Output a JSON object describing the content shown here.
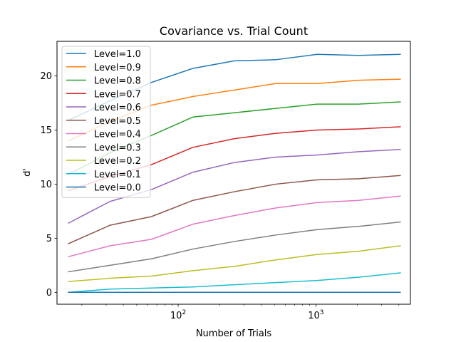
{
  "chart_data": {
    "type": "line",
    "title": "Covariance vs. Trial Count",
    "xlabel": "Number of Trials",
    "ylabel": "d'",
    "xscale": "log",
    "xlim": [
      13.2,
      4850
    ],
    "ylim": [
      -1.1,
      23.2
    ],
    "grid": false,
    "legend_position": "upper-left",
    "x": [
      16,
      32,
      64,
      128,
      256,
      512,
      1024,
      2048,
      4096
    ],
    "x_ticks": [
      {
        "value": 100,
        "base": "10",
        "exp": "2"
      },
      {
        "value": 1000,
        "base": "10",
        "exp": "3"
      }
    ],
    "y_ticks": [
      {
        "value": 0,
        "label": "0"
      },
      {
        "value": 5,
        "label": "5"
      },
      {
        "value": 10,
        "label": "10"
      },
      {
        "value": 15,
        "label": "15"
      },
      {
        "value": 20,
        "label": "20"
      }
    ],
    "series": [
      {
        "name": "Level=1.0",
        "color": "#1f77b4",
        "values": [
          15.9,
          17.7,
          19.4,
          20.7,
          21.4,
          21.5,
          22.0,
          21.9,
          22.0
        ]
      },
      {
        "name": "Level=0.9",
        "color": "#ff7f0e",
        "values": [
          14.0,
          15.8,
          17.3,
          18.1,
          18.7,
          19.3,
          19.3,
          19.6,
          19.7
        ]
      },
      {
        "name": "Level=0.8",
        "color": "#2ca02c",
        "values": [
          10.9,
          12.9,
          14.5,
          16.2,
          16.6,
          17.0,
          17.4,
          17.4,
          17.6
        ]
      },
      {
        "name": "Level=0.7",
        "color": "#d62728",
        "values": [
          9.4,
          10.7,
          11.8,
          13.4,
          14.2,
          14.7,
          15.0,
          15.1,
          15.3
        ]
      },
      {
        "name": "Level=0.6",
        "color": "#9467bd",
        "values": [
          6.4,
          8.4,
          9.5,
          11.1,
          12.0,
          12.5,
          12.7,
          13.0,
          13.2
        ]
      },
      {
        "name": "Level=0.5",
        "color": "#8c564b",
        "values": [
          4.5,
          6.2,
          7.0,
          8.5,
          9.3,
          10.0,
          10.4,
          10.5,
          10.8
        ]
      },
      {
        "name": "Level=0.4",
        "color": "#e377c2",
        "values": [
          3.3,
          4.3,
          4.9,
          6.3,
          7.1,
          7.8,
          8.3,
          8.5,
          8.9
        ]
      },
      {
        "name": "Level=0.3",
        "color": "#7f7f7f",
        "values": [
          1.9,
          2.5,
          3.1,
          4.0,
          4.7,
          5.3,
          5.8,
          6.1,
          6.5
        ]
      },
      {
        "name": "Level=0.2",
        "color": "#bcbd22",
        "values": [
          1.0,
          1.3,
          1.5,
          2.0,
          2.4,
          3.0,
          3.5,
          3.8,
          4.3
        ]
      },
      {
        "name": "Level=0.1",
        "color": "#17becf",
        "values": [
          0.0,
          0.3,
          0.4,
          0.5,
          0.7,
          0.9,
          1.1,
          1.4,
          1.8
        ]
      },
      {
        "name": "Level=0.0",
        "color": "#1f77b4",
        "values": [
          0.0,
          0.0,
          0.0,
          0.0,
          0.0,
          0.0,
          0.0,
          0.0,
          0.0
        ]
      }
    ]
  }
}
